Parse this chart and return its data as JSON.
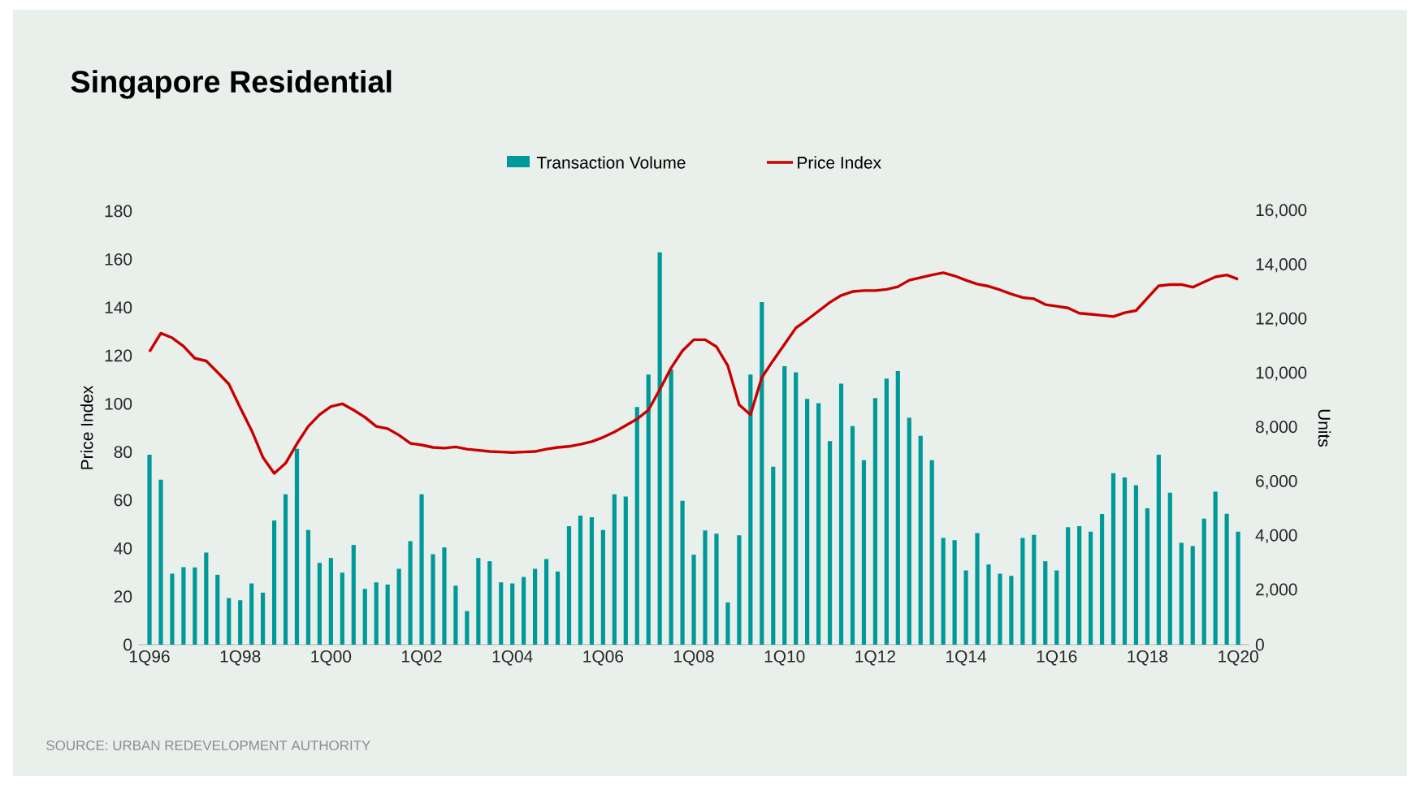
{
  "chart_data": {
    "type": "bar",
    "title": "Singapore Residential",
    "ylabel": "Price Index",
    "y2label": "Units",
    "legend": "top",
    "categories": [
      "1Q96",
      null,
      null,
      null,
      null,
      null,
      null,
      null,
      "1Q98",
      null,
      null,
      null,
      null,
      null,
      null,
      null,
      "1Q00",
      null,
      null,
      null,
      null,
      null,
      null,
      null,
      "1Q02",
      null,
      null,
      null,
      null,
      null,
      null,
      null,
      "1Q04",
      null,
      null,
      null,
      null,
      null,
      null,
      null,
      "1Q06",
      null,
      null,
      null,
      null,
      null,
      null,
      null,
      "1Q08",
      null,
      null,
      null,
      null,
      null,
      null,
      null,
      "1Q10",
      null,
      null,
      null,
      null,
      null,
      null,
      null,
      "1Q12",
      null,
      null,
      null,
      null,
      null,
      null,
      null,
      "1Q14",
      null,
      null,
      null,
      null,
      null,
      null,
      null,
      "1Q16",
      null,
      null,
      null,
      null,
      null,
      null,
      null,
      "1Q18",
      null,
      null,
      null,
      null,
      null,
      null,
      null,
      "1Q20"
    ],
    "ylim": [
      0,
      180
    ],
    "yticks": [
      0,
      20,
      40,
      60,
      80,
      100,
      120,
      140,
      160,
      180
    ],
    "y2lim": [
      0,
      16000
    ],
    "y2ticks": [
      0,
      {
        "value": 2000,
        "label": "2,000"
      },
      {
        "value": 4000,
        "label": "4,000"
      },
      {
        "value": 6000,
        "label": "6,000"
      },
      {
        "value": 8000,
        "label": "8,000"
      },
      {
        "value": 10000,
        "label": "10,000"
      },
      {
        "value": 12000,
        "label": "12,000"
      },
      {
        "value": 14000,
        "label": "14,000"
      },
      {
        "value": 16000,
        "label": "16,000"
      }
    ],
    "series": [
      {
        "name": "Transaction Volume",
        "axis": "y2",
        "color": "#00999a",
        "values": [
          7010,
          6090,
          2620,
          2860,
          2850,
          3400,
          2580,
          1720,
          1640,
          2260,
          1920,
          4580,
          5550,
          7230,
          4230,
          3020,
          3200,
          2660,
          3680,
          2060,
          2300,
          2220,
          2800,
          3820,
          5550,
          3340,
          3590,
          2180,
          1240,
          3200,
          3080,
          2300,
          2260,
          2500,
          2800,
          3160,
          2700,
          4370,
          4760,
          4700,
          4230,
          5550,
          5470,
          8770,
          9970,
          14480,
          10150,
          5310,
          3320,
          4220,
          4100,
          1560,
          4040,
          9970,
          12640,
          6570,
          10280,
          10050,
          9070,
          8910,
          7510,
          9630,
          8070,
          6810,
          9100,
          9820,
          10100,
          8370,
          7710,
          6810,
          3940,
          3860,
          2740,
          4120,
          2960,
          2620,
          2540,
          3940,
          4050,
          3080,
          2740,
          4340,
          4370,
          4170,
          4820,
          6330,
          6170,
          5890,
          5030,
          7010,
          5610,
          3760,
          3640,
          4650,
          5650,
          4830,
          4170
        ]
      },
      {
        "name": "Price Index",
        "type": "line",
        "axis": "y",
        "color": "#c80000",
        "values": [
          121.6,
          129.3,
          127.4,
          123.9,
          118.9,
          117.8,
          113.1,
          108.2,
          98.4,
          89,
          77.8,
          71.1,
          75.3,
          83.4,
          90.6,
          95.5,
          98.9,
          100,
          97.4,
          94.4,
          90.6,
          89.7,
          87,
          83.6,
          82.9,
          81.9,
          81.6,
          82.1,
          81.2,
          80.7,
          80.2,
          80,
          79.8,
          80,
          80.2,
          81.2,
          81.9,
          82.3,
          83.2,
          84.3,
          86.1,
          88.3,
          91,
          93.7,
          97.4,
          105.9,
          114.9,
          122,
          126.6,
          126.6,
          123.7,
          115.8,
          99.6,
          95.5,
          110.9,
          118,
          124.7,
          131.5,
          134.9,
          138.5,
          142.1,
          145,
          146.6,
          147,
          147,
          147.5,
          148.6,
          151.3,
          152.4,
          153.5,
          154.4,
          153.1,
          151.3,
          149.7,
          148.8,
          147.3,
          145.6,
          144.1,
          143.6,
          141.2,
          140.5,
          139.8,
          137.6,
          137.2,
          136.7,
          136.2,
          137.8,
          138.7,
          143.9,
          149,
          149.5,
          149.5,
          148.4,
          150.6,
          152.7,
          153.5,
          151.7
        ]
      }
    ],
    "annotations": [
      "SOURCE: URBAN REDEVELOPMENT AUTHORITY"
    ]
  }
}
